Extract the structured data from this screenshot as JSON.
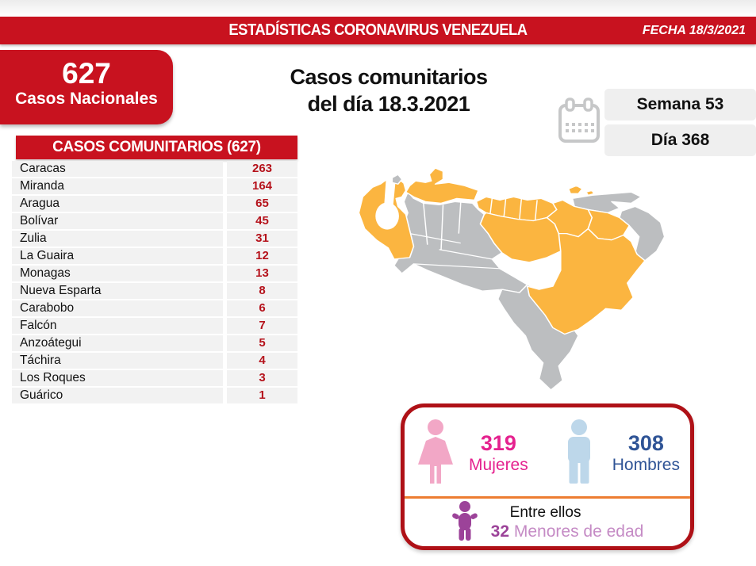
{
  "colors": {
    "red": "#C8121F",
    "dark-red": "#AF1117",
    "value-red": "#B5121B",
    "row-bg": "#F2F2F2",
    "pill-bg": "#EFEFEF",
    "map-gray": "#BCBEC0",
    "map-orange": "#FBB540",
    "calendar-gray": "#C6C7C8",
    "pink": "#F2A7C6",
    "magenta": "#E5228F",
    "light-blue": "#BDD7EA",
    "blue": "#2F5496",
    "divider-orange": "#ED7D31",
    "purple": "#9C4399",
    "mauve": "#C58BC5"
  },
  "header": {
    "title": "ESTADÍSTICAS CORONAVIRUS VENEZUELA",
    "date": "FECHA 18/3/2021"
  },
  "national": {
    "value": "627",
    "label": "Casos Nacionales"
  },
  "title": {
    "line1": "Casos comunitarios",
    "line2": "del día 18.3.2021"
  },
  "period": {
    "week": "Semana 53",
    "day": "Día 368",
    "calendar_icon": "calendar-icon"
  },
  "community_table": {
    "title": "CASOS COMUNITARIOS (627)",
    "rows": [
      {
        "state": "Caracas",
        "cases": "263"
      },
      {
        "state": "Miranda",
        "cases": "164"
      },
      {
        "state": "Aragua",
        "cases": "65"
      },
      {
        "state": "Bolívar",
        "cases": "45"
      },
      {
        "state": "Zulia",
        "cases": "31"
      },
      {
        "state": "La Guaira",
        "cases": "12"
      },
      {
        "state": "Monagas",
        "cases": "13"
      },
      {
        "state": "Nueva Esparta",
        "cases": "8"
      },
      {
        "state": "Carabobo",
        "cases": "6"
      },
      {
        "state": "Falcón",
        "cases": "7"
      },
      {
        "state": "Anzoátegui",
        "cases": "5"
      },
      {
        "state": "Táchira",
        "cases": "4"
      },
      {
        "state": "Los Roques",
        "cases": "3"
      },
      {
        "state": "Guárico",
        "cases": "1"
      }
    ]
  },
  "map": {
    "highlighted_states": [
      "Zulia",
      "Falcón",
      "Carabobo",
      "Aragua",
      "Caracas",
      "Miranda",
      "Guárico",
      "Anzoátegui",
      "Monagas",
      "Bolívar",
      "Nueva Esparta"
    ]
  },
  "demographics": {
    "women": {
      "value": "319",
      "label": "Mujeres"
    },
    "men": {
      "value": "308",
      "label": "Hombres"
    },
    "minors": {
      "intro": "Entre ellos",
      "value": "32",
      "label": "Menores de edad"
    }
  },
  "chart_data": {
    "type": "table",
    "title": "CASOS COMUNITARIOS (627)",
    "categories": [
      "Caracas",
      "Miranda",
      "Aragua",
      "Bolívar",
      "Zulia",
      "La Guaira",
      "Monagas",
      "Nueva Esparta",
      "Carabobo",
      "Falcón",
      "Anzoátegui",
      "Táchira",
      "Los Roques",
      "Guárico"
    ],
    "values": [
      263,
      164,
      65,
      45,
      31,
      12,
      13,
      8,
      6,
      7,
      5,
      4,
      3,
      1
    ],
    "total_national": 627,
    "women": 319,
    "men": 308,
    "minors": 32
  }
}
